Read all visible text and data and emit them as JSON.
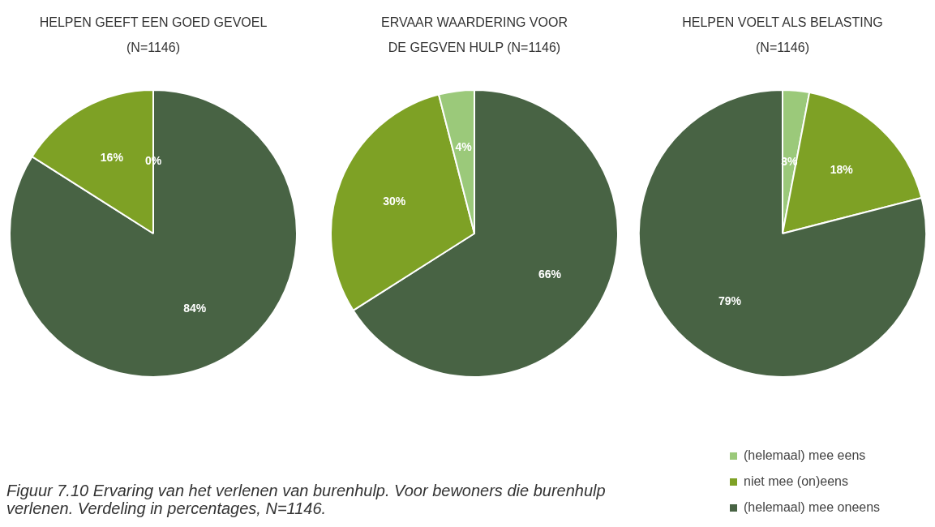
{
  "chart_data": [
    {
      "type": "pie",
      "title": "HELPEN GEEFT EEN GOED GEVOEL\n(N=1146)",
      "values": [
        84,
        16,
        0
      ],
      "colors": [
        "#486344",
        "#7ea125",
        "#9bc97a"
      ],
      "value_labels": [
        "84%",
        "16%",
        "0%"
      ],
      "legend": false,
      "annotations": [
        "Figuur 7.10 Ervaring van het verlenen van burenhulp. Voor bewoners die burenhulp verlenen. Verdeling in percentages, N=1146."
      ]
    },
    {
      "type": "pie",
      "title": "ERVAAR WAARDERING VOOR\nDE GEGVEN HULP (N=1146)",
      "values": [
        66,
        30,
        4
      ],
      "colors": [
        "#486344",
        "#7ea125",
        "#9bc97a"
      ],
      "value_labels": [
        "66%",
        "30%",
        "4%"
      ],
      "legend": false
    },
    {
      "type": "pie",
      "title": "HELPEN VOELT ALS BELASTING\n(N=1146)",
      "categories": [
        "(helemaal) mee eens",
        "niet mee (on)eens",
        "(helemaal) mee oneens"
      ],
      "values": [
        3,
        18,
        79
      ],
      "colors": [
        "#9bc97a",
        "#7ea125",
        "#486344"
      ],
      "value_labels": [
        "3%",
        "18%",
        "79%"
      ],
      "legend": "bottom right"
    }
  ]
}
